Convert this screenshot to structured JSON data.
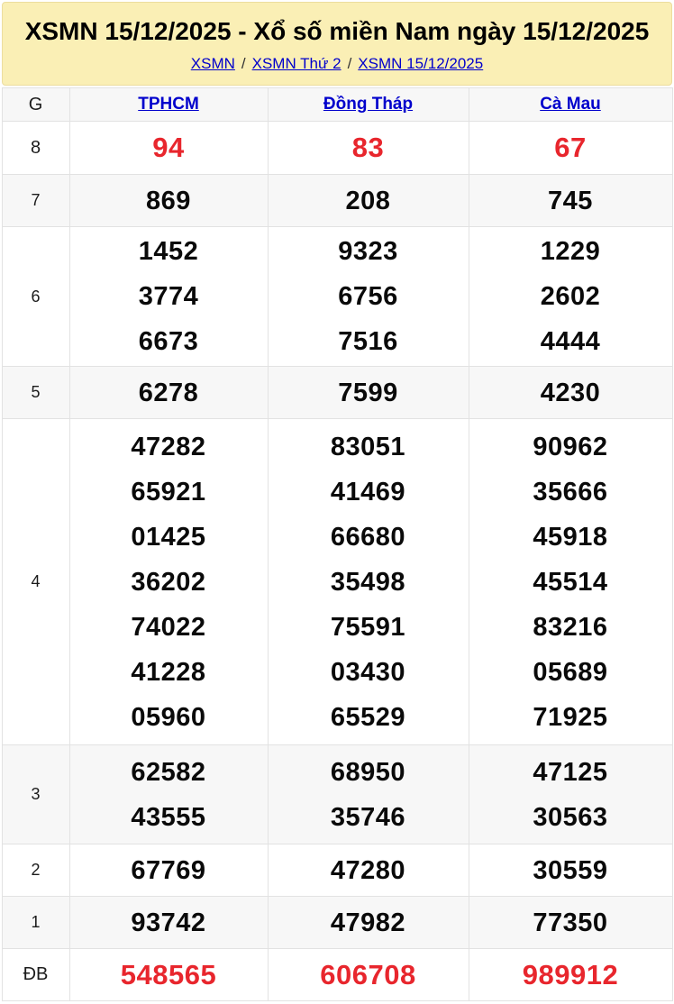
{
  "header": {
    "title": "XSMN 15/12/2025 - Xổ số miền Nam ngày 15/12/2025",
    "breadcrumb": [
      "XSMN",
      "XSMN Thứ 2",
      "XSMN 15/12/2025"
    ],
    "separator": "/"
  },
  "table": {
    "corner_label": "G",
    "columns": [
      "TPHCM",
      "Đồng Tháp",
      "Cà Mau"
    ],
    "rows": [
      {
        "label": "8",
        "highlight": true,
        "cells": [
          [
            "94"
          ],
          [
            "83"
          ],
          [
            "67"
          ]
        ]
      },
      {
        "label": "7",
        "highlight": false,
        "cells": [
          [
            "869"
          ],
          [
            "208"
          ],
          [
            "745"
          ]
        ]
      },
      {
        "label": "6",
        "highlight": false,
        "cells": [
          [
            "1452",
            "3774",
            "6673"
          ],
          [
            "9323",
            "6756",
            "7516"
          ],
          [
            "1229",
            "2602",
            "4444"
          ]
        ]
      },
      {
        "label": "5",
        "highlight": false,
        "cells": [
          [
            "6278"
          ],
          [
            "7599"
          ],
          [
            "4230"
          ]
        ]
      },
      {
        "label": "4",
        "highlight": false,
        "cells": [
          [
            "47282",
            "65921",
            "01425",
            "36202",
            "74022",
            "41228",
            "05960"
          ],
          [
            "83051",
            "41469",
            "66680",
            "35498",
            "75591",
            "03430",
            "65529"
          ],
          [
            "90962",
            "35666",
            "45918",
            "45514",
            "83216",
            "05689",
            "71925"
          ]
        ]
      },
      {
        "label": "3",
        "highlight": false,
        "cells": [
          [
            "62582",
            "43555"
          ],
          [
            "68950",
            "35746"
          ],
          [
            "47125",
            "30563"
          ]
        ]
      },
      {
        "label": "2",
        "highlight": false,
        "cells": [
          [
            "67769"
          ],
          [
            "47280"
          ],
          [
            "30559"
          ]
        ]
      },
      {
        "label": "1",
        "highlight": false,
        "cells": [
          [
            "93742"
          ],
          [
            "47982"
          ],
          [
            "77350"
          ]
        ]
      },
      {
        "label": "ĐB",
        "highlight": true,
        "cells": [
          [
            "548565"
          ],
          [
            "606708"
          ],
          [
            "989912"
          ]
        ]
      }
    ]
  },
  "bottom_tabs": {
    "count": 13,
    "active_index": 0
  },
  "colors": {
    "header_bg": "#FAEFB5",
    "header_border": "#ECDD9E",
    "link_blue": "#0000CC",
    "accent_red": "#E8262D",
    "row_alt_bg": "#F7F7F7",
    "tab_red": "#C00C0C"
  }
}
